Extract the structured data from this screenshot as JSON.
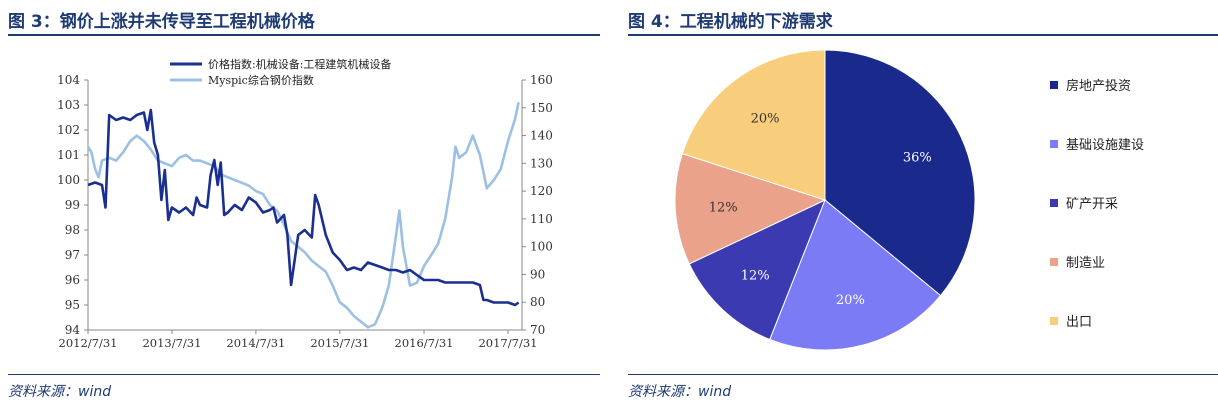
{
  "figure_left": {
    "title": "图 3：钢价上涨并未传导至工程机械价格",
    "source": "资料来源：wind"
  },
  "figure_right": {
    "title": "图 4：工程机械的下游需求",
    "source": "资料来源：wind"
  },
  "chart_data": [
    {
      "type": "line",
      "title": "图 3：钢价上涨并未传导至工程机械价格",
      "x_ticks": [
        "2012/7/31",
        "2013/7/31",
        "2014/7/31",
        "2015/7/31",
        "2016/7/31",
        "2017/7/31"
      ],
      "xlim": [
        "2012-07-31",
        "2017-09-30"
      ],
      "y_left": {
        "lim": [
          94,
          104
        ],
        "ticks": [
          94,
          95,
          96,
          97,
          98,
          99,
          100,
          101,
          102,
          103,
          104
        ]
      },
      "y_right": {
        "lim": [
          70,
          160
        ],
        "ticks": [
          70,
          80,
          90,
          100,
          110,
          120,
          130,
          140,
          150,
          160
        ]
      },
      "grid": false,
      "legend_position": "top",
      "series": [
        {
          "name": "价格指数:机械设备:工程建筑机械设备",
          "axis": "left",
          "color": "#1a2f8f",
          "points": [
            [
              "2012-07-31",
              99.8
            ],
            [
              "2012-08-31",
              99.9
            ],
            [
              "2012-09-30",
              99.8
            ],
            [
              "2012-10-15",
              98.9
            ],
            [
              "2012-10-31",
              102.6
            ],
            [
              "2012-11-30",
              102.4
            ],
            [
              "2012-12-31",
              102.5
            ],
            [
              "2013-01-31",
              102.4
            ],
            [
              "2013-02-28",
              102.6
            ],
            [
              "2013-03-31",
              102.7
            ],
            [
              "2013-04-15",
              102.0
            ],
            [
              "2013-04-30",
              102.8
            ],
            [
              "2013-05-15",
              101.5
            ],
            [
              "2013-05-31",
              101.0
            ],
            [
              "2013-06-15",
              99.2
            ],
            [
              "2013-06-30",
              100.4
            ],
            [
              "2013-07-15",
              98.4
            ],
            [
              "2013-07-31",
              98.9
            ],
            [
              "2013-08-31",
              98.7
            ],
            [
              "2013-09-30",
              98.9
            ],
            [
              "2013-10-31",
              98.6
            ],
            [
              "2013-11-15",
              99.3
            ],
            [
              "2013-11-30",
              99.0
            ],
            [
              "2013-12-31",
              98.9
            ],
            [
              "2014-01-15",
              100.2
            ],
            [
              "2014-01-31",
              100.8
            ],
            [
              "2014-02-15",
              99.8
            ],
            [
              "2014-02-28",
              100.7
            ],
            [
              "2014-03-15",
              98.6
            ],
            [
              "2014-03-31",
              98.7
            ],
            [
              "2014-04-30",
              99.0
            ],
            [
              "2014-05-31",
              98.8
            ],
            [
              "2014-06-30",
              99.3
            ],
            [
              "2014-07-31",
              99.1
            ],
            [
              "2014-08-31",
              98.7
            ],
            [
              "2014-09-30",
              98.8
            ],
            [
              "2014-10-15",
              98.9
            ],
            [
              "2014-10-31",
              98.3
            ],
            [
              "2014-11-30",
              98.6
            ],
            [
              "2014-12-15",
              97.8
            ],
            [
              "2014-12-31",
              95.8
            ],
            [
              "2015-01-31",
              97.8
            ],
            [
              "2015-02-28",
              98.0
            ],
            [
              "2015-03-31",
              97.7
            ],
            [
              "2015-04-15",
              99.4
            ],
            [
              "2015-04-30",
              99.0
            ],
            [
              "2015-05-31",
              97.8
            ],
            [
              "2015-06-30",
              97.1
            ],
            [
              "2015-07-31",
              96.8
            ],
            [
              "2015-08-31",
              96.4
            ],
            [
              "2015-09-30",
              96.5
            ],
            [
              "2015-10-31",
              96.4
            ],
            [
              "2015-11-30",
              96.7
            ],
            [
              "2015-12-31",
              96.6
            ],
            [
              "2016-01-31",
              96.5
            ],
            [
              "2016-02-29",
              96.4
            ],
            [
              "2016-03-31",
              96.4
            ],
            [
              "2016-04-30",
              96.3
            ],
            [
              "2016-05-31",
              96.4
            ],
            [
              "2016-06-30",
              96.2
            ],
            [
              "2016-07-31",
              96.0
            ],
            [
              "2016-08-31",
              96.0
            ],
            [
              "2016-09-30",
              96.0
            ],
            [
              "2016-10-31",
              95.9
            ],
            [
              "2016-11-30",
              95.9
            ],
            [
              "2016-12-31",
              95.9
            ],
            [
              "2017-01-31",
              95.9
            ],
            [
              "2017-02-28",
              95.9
            ],
            [
              "2017-03-31",
              95.8
            ],
            [
              "2017-04-15",
              95.2
            ],
            [
              "2017-04-30",
              95.2
            ],
            [
              "2017-05-31",
              95.1
            ],
            [
              "2017-06-30",
              95.1
            ],
            [
              "2017-07-31",
              95.1
            ],
            [
              "2017-08-31",
              95.0
            ],
            [
              "2017-09-15",
              95.1
            ]
          ]
        },
        {
          "name": "Myspic综合钢价指数",
          "axis": "right",
          "color": "#9cc0e3",
          "points": [
            [
              "2012-07-31",
              136
            ],
            [
              "2012-08-15",
              134
            ],
            [
              "2012-08-31",
              128
            ],
            [
              "2012-09-15",
              125
            ],
            [
              "2012-09-30",
              131
            ],
            [
              "2012-10-31",
              132
            ],
            [
              "2012-11-30",
              131
            ],
            [
              "2012-12-31",
              134
            ],
            [
              "2013-01-31",
              138
            ],
            [
              "2013-02-28",
              140
            ],
            [
              "2013-03-31",
              138
            ],
            [
              "2013-04-30",
              135
            ],
            [
              "2013-05-31",
              131
            ],
            [
              "2013-06-30",
              130
            ],
            [
              "2013-07-31",
              129
            ],
            [
              "2013-08-31",
              132
            ],
            [
              "2013-09-30",
              133
            ],
            [
              "2013-10-31",
              131
            ],
            [
              "2013-11-30",
              131
            ],
            [
              "2013-12-31",
              130
            ],
            [
              "2014-01-31",
              129
            ],
            [
              "2014-02-28",
              126
            ],
            [
              "2014-03-31",
              125
            ],
            [
              "2014-04-30",
              124
            ],
            [
              "2014-05-31",
              123
            ],
            [
              "2014-06-30",
              122
            ],
            [
              "2014-07-31",
              120
            ],
            [
              "2014-08-31",
              119
            ],
            [
              "2014-09-30",
              115
            ],
            [
              "2014-10-31",
              113
            ],
            [
              "2014-11-30",
              108
            ],
            [
              "2014-12-31",
              102
            ],
            [
              "2015-01-31",
              100
            ],
            [
              "2015-02-28",
              98
            ],
            [
              "2015-03-31",
              95
            ],
            [
              "2015-04-30",
              93
            ],
            [
              "2015-05-31",
              91
            ],
            [
              "2015-06-30",
              86
            ],
            [
              "2015-07-31",
              80
            ],
            [
              "2015-08-31",
              78
            ],
            [
              "2015-09-30",
              75
            ],
            [
              "2015-10-31",
              73
            ],
            [
              "2015-11-30",
              71
            ],
            [
              "2015-12-31",
              72
            ],
            [
              "2016-01-31",
              78
            ],
            [
              "2016-02-29",
              86
            ],
            [
              "2016-03-31",
              104
            ],
            [
              "2016-04-15",
              113
            ],
            [
              "2016-04-30",
              100
            ],
            [
              "2016-05-31",
              86
            ],
            [
              "2016-06-30",
              87
            ],
            [
              "2016-07-31",
              93
            ],
            [
              "2016-08-31",
              97
            ],
            [
              "2016-09-30",
              101
            ],
            [
              "2016-10-31",
              110
            ],
            [
              "2016-11-30",
              125
            ],
            [
              "2016-12-15",
              136
            ],
            [
              "2016-12-31",
              132
            ],
            [
              "2017-01-31",
              134
            ],
            [
              "2017-02-28",
              140
            ],
            [
              "2017-03-31",
              133
            ],
            [
              "2017-04-30",
              121
            ],
            [
              "2017-05-31",
              124
            ],
            [
              "2017-06-30",
              128
            ],
            [
              "2017-07-31",
              138
            ],
            [
              "2017-08-31",
              146
            ],
            [
              "2017-09-15",
              152
            ]
          ]
        }
      ]
    },
    {
      "type": "pie",
      "title": "图 4：工程机械的下游需求",
      "legend_position": "right",
      "slices": [
        {
          "label": "房地产投资",
          "value": 36,
          "display": "36%",
          "color": "#1a2a8c"
        },
        {
          "label": "基础设施建设",
          "value": 20,
          "display": "20%",
          "color": "#7b7bf5"
        },
        {
          "label": "矿产开采",
          "value": 12,
          "display": "12%",
          "color": "#3c3ab0"
        },
        {
          "label": "制造业",
          "value": 12,
          "display": "12%",
          "color": "#eba28a"
        },
        {
          "label": "出口",
          "value": 20,
          "display": "20%",
          "color": "#f8cd7b"
        }
      ]
    }
  ]
}
